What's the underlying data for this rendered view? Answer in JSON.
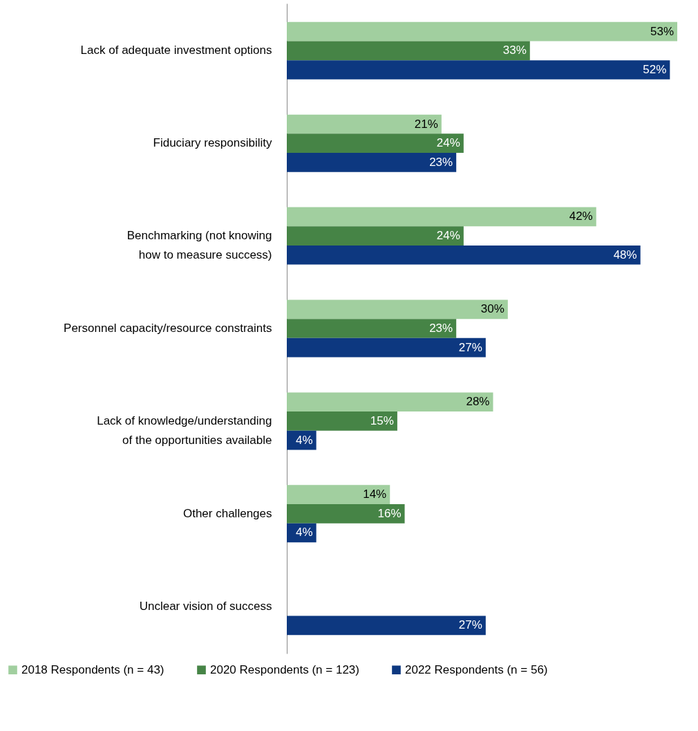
{
  "chart_data": {
    "type": "bar",
    "orientation": "horizontal",
    "categories": [
      "Lack of adequate investment options",
      "Fiduciary responsibility",
      "Benchmarking (not knowing how to measure success)",
      "Personnel capacity/resource constraints",
      "Lack of knowledge/understanding of the opportunities available",
      "Other challenges",
      "Unclear vision of success"
    ],
    "series": [
      {
        "name": "2018 Respondents (n = 43)",
        "color": "#a1cf9f",
        "values": [
          53,
          21,
          42,
          30,
          28,
          14,
          null
        ],
        "value_labels": [
          "53%",
          "21%",
          "42%",
          "30%",
          "28%",
          "14%",
          null
        ]
      },
      {
        "name": "2020 Respondents (n = 123)",
        "color": "#468446",
        "values": [
          33,
          24,
          24,
          23,
          15,
          16,
          null
        ],
        "value_labels": [
          "33%",
          "24%",
          "24%",
          "23%",
          "15%",
          "16%",
          null
        ]
      },
      {
        "name": "2022 Respondents (n = 56)",
        "color": "#0d3880",
        "values": [
          52,
          23,
          48,
          27,
          4,
          4,
          27
        ],
        "value_labels": [
          "52%",
          "23%",
          "48%",
          "27%",
          "4%",
          "4%",
          "27%"
        ]
      }
    ],
    "xlim": [
      0,
      53
    ],
    "tick_labels": "y",
    "legend": "bottom",
    "grid": false
  }
}
